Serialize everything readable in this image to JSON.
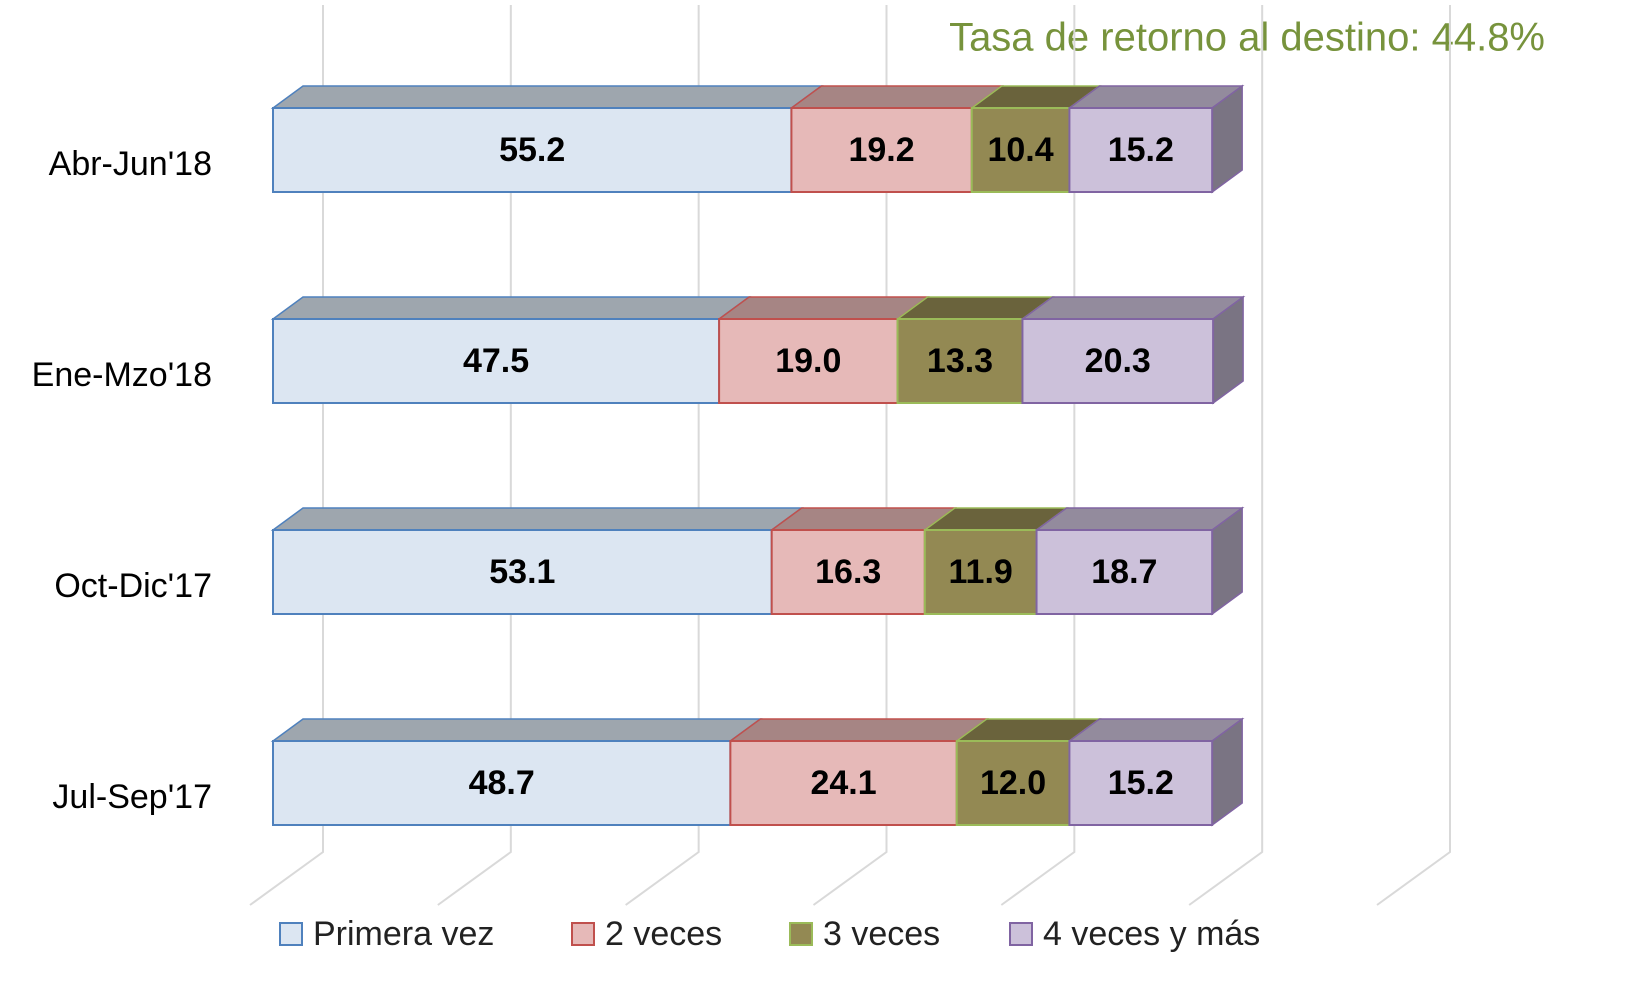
{
  "chart_data": {
    "type": "stacked_barh_3d",
    "annotation": "Tasa de retorno al destino: 44.8%",
    "annotation_color": "#77933c",
    "categories": [
      "Abr-Jun'18",
      "Ene-Mzo'18",
      "Oct-Dic'17",
      "Jul-Sep'17"
    ],
    "series": [
      {
        "name": "Primera vez",
        "color": "#dce6f2",
        "edgecolor": "#4f81bd",
        "values": [
          55.2,
          47.5,
          53.1,
          48.7
        ],
        "value_labels": [
          "55.2",
          "47.5",
          "53.1",
          "48.7"
        ]
      },
      {
        "name": "2 veces",
        "color": "#e6b9b8",
        "edgecolor": "#c0504d",
        "values": [
          19.2,
          19.0,
          16.3,
          24.1
        ],
        "value_labels": [
          "19.2",
          "19.0",
          "16.3",
          "24.1"
        ]
      },
      {
        "name": "3 veces",
        "color": "#938953",
        "edgecolor": "#9bbb59",
        "values": [
          10.4,
          13.3,
          11.9,
          12.0
        ],
        "value_labels": [
          "10.4",
          "13.3",
          "11.9",
          "12.0"
        ]
      },
      {
        "name": "4 veces y más",
        "color": "#ccc1da",
        "edgecolor": "#8064a2",
        "values": [
          15.2,
          20.3,
          18.7,
          15.2
        ],
        "value_labels": [
          "15.2",
          "20.3",
          "18.7",
          "15.2"
        ]
      }
    ],
    "xlim": [
      0,
      120
    ],
    "xticks": [
      0,
      20,
      40,
      60,
      80,
      100,
      120
    ],
    "grid": true,
    "legend": "bottom"
  }
}
